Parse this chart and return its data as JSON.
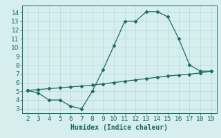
{
  "xlabel": "Humidex (Indice chaleur)",
  "line1_x": [
    2,
    3,
    4,
    5,
    6,
    7,
    8,
    9,
    10,
    11,
    12,
    13,
    14,
    15,
    16,
    17,
    18,
    19
  ],
  "line1_y": [
    5.1,
    4.8,
    4.0,
    4.0,
    3.3,
    3.0,
    5.0,
    7.5,
    10.2,
    13.0,
    13.0,
    14.1,
    14.1,
    13.5,
    11.0,
    8.0,
    7.3,
    7.3
  ],
  "line2_x": [
    2,
    3,
    4,
    5,
    6,
    7,
    8,
    9,
    10,
    11,
    12,
    13,
    14,
    15,
    16,
    17,
    18,
    19
  ],
  "line2_y": [
    5.1,
    5.2,
    5.3,
    5.4,
    5.5,
    5.6,
    5.7,
    5.85,
    6.0,
    6.15,
    6.3,
    6.45,
    6.6,
    6.75,
    6.85,
    6.95,
    7.1,
    7.3
  ],
  "line_color": "#1a6b5e",
  "bg_color": "#d6eeee",
  "grid_color": "#b8d8d8",
  "xlim": [
    1.5,
    19.5
  ],
  "ylim": [
    2.5,
    14.8
  ],
  "xticks": [
    2,
    3,
    4,
    5,
    6,
    7,
    8,
    9,
    10,
    11,
    12,
    13,
    14,
    15,
    16,
    17,
    18,
    19
  ],
  "yticks": [
    3,
    4,
    5,
    6,
    7,
    8,
    9,
    10,
    11,
    12,
    13,
    14
  ],
  "marker": "D",
  "markersize": 2.5,
  "tick_fontsize": 6.5,
  "xlabel_fontsize": 7.0
}
